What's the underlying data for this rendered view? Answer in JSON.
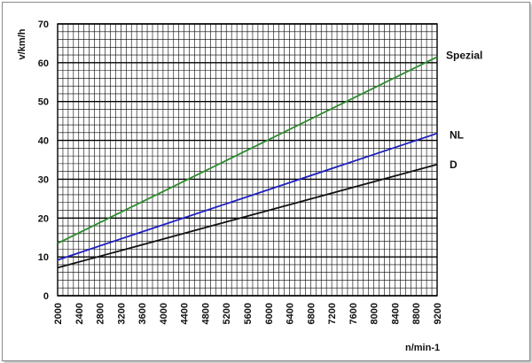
{
  "chart_data": {
    "type": "line",
    "title": "",
    "xlabel": "n/min-1",
    "ylabel": "v/km/h",
    "xlim": [
      2000,
      9200
    ],
    "ylim": [
      0,
      70
    ],
    "x_ticks": [
      2000,
      2400,
      2800,
      3200,
      3600,
      4000,
      4400,
      4800,
      5200,
      5600,
      6000,
      6400,
      6800,
      7200,
      7600,
      8000,
      8400,
      8800,
      9200
    ],
    "y_ticks": [
      0,
      10,
      20,
      30,
      40,
      50,
      60,
      70
    ],
    "grid": true,
    "legend": "labels at line ends (right)",
    "series": [
      {
        "name": "Spezial",
        "color": "#2e8b2e",
        "x": [
          2000,
          9200
        ],
        "y": [
          13.5,
          61.5
        ]
      },
      {
        "name": "NL",
        "color": "#1f1fbf",
        "x": [
          2000,
          9200
        ],
        "y": [
          9.2,
          41.8
        ]
      },
      {
        "name": "D",
        "color": "#111111",
        "x": [
          2000,
          9200
        ],
        "y": [
          7.2,
          33.8
        ]
      }
    ]
  }
}
